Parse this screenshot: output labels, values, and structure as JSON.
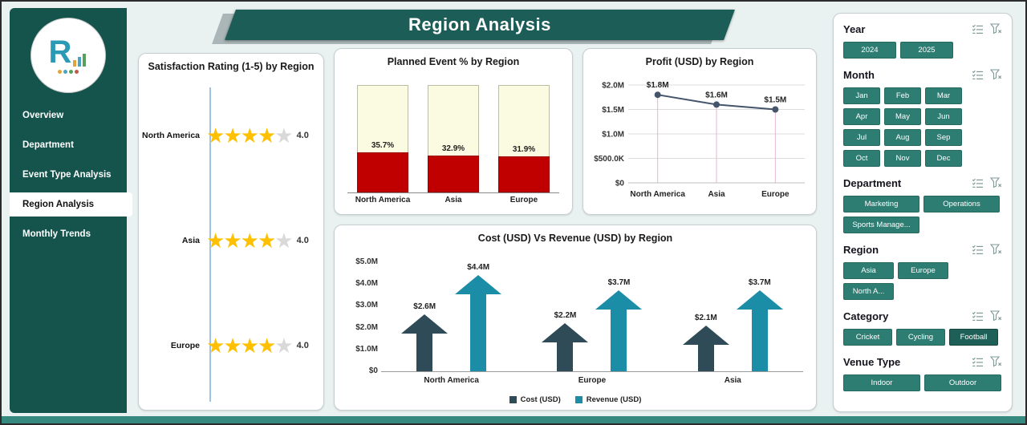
{
  "header": {
    "title": "Region Analysis"
  },
  "brand": {
    "letter": "R"
  },
  "sidebar": {
    "items": [
      {
        "label": "Overview",
        "active": false
      },
      {
        "label": "Department",
        "active": false
      },
      {
        "label": "Event Type Analysis",
        "active": false
      },
      {
        "label": "Region Analysis",
        "active": true
      },
      {
        "label": "Monthly Trends",
        "active": false
      }
    ]
  },
  "chart_data": [
    {
      "type": "bar",
      "style": "star-rating",
      "title": "Satisfaction Rating (1-5) by Region",
      "categories": [
        "North America",
        "Asia",
        "Europe"
      ],
      "values": [
        4.0,
        4.0,
        4.0
      ],
      "max_stars": 5,
      "star_color": "#FFC000",
      "empty_star_color": "#d9d9d9"
    },
    {
      "type": "bar",
      "style": "stacked-percent-column",
      "title": "Planned Event % by Region",
      "categories": [
        "North America",
        "Asia",
        "Europe"
      ],
      "values": [
        35.7,
        32.9,
        31.9
      ],
      "labels": [
        "35.7%",
        "32.9%",
        "31.9%"
      ],
      "filled_color": "#C00000",
      "rest_color": "#FBFBE2"
    },
    {
      "type": "line",
      "title": "Profit (USD) by Region",
      "categories": [
        "North America",
        "Asia",
        "Europe"
      ],
      "values": [
        1800000,
        1600000,
        1500000
      ],
      "labels": [
        "$1.8M",
        "$1.6M",
        "$1.5M"
      ],
      "ylim": [
        0,
        2000000
      ],
      "yticks": [
        2000000,
        1500000,
        1000000,
        500000,
        0
      ],
      "ytick_labels": [
        "$2.0M",
        "$1.5M",
        "$1.0M",
        "$500.0K",
        "$0"
      ],
      "line_color": "#44546A",
      "droplines": true
    },
    {
      "type": "bar",
      "style": "arrow-columns",
      "title": "Cost (USD) Vs Revenue (USD) by Region",
      "categories": [
        "North America",
        "Europe",
        "Asia"
      ],
      "series": [
        {
          "name": "Cost (USD)",
          "values": [
            2600000,
            2200000,
            2100000
          ],
          "labels": [
            "$2.6M",
            "$2.2M",
            "$2.1M"
          ],
          "color": "#2e4b57"
        },
        {
          "name": "Revenue (USD)",
          "values": [
            4400000,
            3700000,
            3700000
          ],
          "labels": [
            "$4.4M",
            "$3.7M",
            "$3.7M"
          ],
          "color": "#1b8da6"
        }
      ],
      "ylim": [
        0,
        5000000
      ],
      "yticks": [
        5000000,
        4000000,
        3000000,
        2000000,
        1000000,
        0
      ],
      "ytick_labels": [
        "$5.0M",
        "$4.0M",
        "$3.0M",
        "$2.0M",
        "$1.0M",
        "$0"
      ],
      "legend_position": "bottom"
    }
  ],
  "slicers": [
    {
      "title": "Year",
      "items": [
        {
          "label": "2024"
        },
        {
          "label": "2025"
        }
      ]
    },
    {
      "title": "Month",
      "items": [
        {
          "label": "Jan"
        },
        {
          "label": "Feb"
        },
        {
          "label": "Mar"
        },
        {
          "label": "Apr"
        },
        {
          "label": "May"
        },
        {
          "label": "Jun"
        },
        {
          "label": "Jul"
        },
        {
          "label": "Aug"
        },
        {
          "label": "Sep"
        },
        {
          "label": "Oct"
        },
        {
          "label": "Nov"
        },
        {
          "label": "Dec"
        }
      ]
    },
    {
      "title": "Department",
      "items": [
        {
          "label": "Marketing"
        },
        {
          "label": "Operations"
        },
        {
          "label": "Sports Manage..."
        }
      ]
    },
    {
      "title": "Region",
      "items": [
        {
          "label": "Asia"
        },
        {
          "label": "Europe"
        },
        {
          "label": "North A..."
        }
      ]
    },
    {
      "title": "Category",
      "items": [
        {
          "label": "Cricket"
        },
        {
          "label": "Cycling"
        },
        {
          "label": "Football",
          "dark": true
        }
      ]
    },
    {
      "title": "Venue Type",
      "items": [
        {
          "label": "Indoor"
        },
        {
          "label": "Outdoor"
        }
      ]
    }
  ],
  "colors": {
    "sidebar": "#14544c",
    "ribbon": "#1c5e57",
    "slicer_button": "#2e7d73",
    "accent_teal": "#1b8da6",
    "accent_dark": "#2e4b57",
    "bar_red": "#C00000",
    "star_gold": "#FFC000"
  }
}
